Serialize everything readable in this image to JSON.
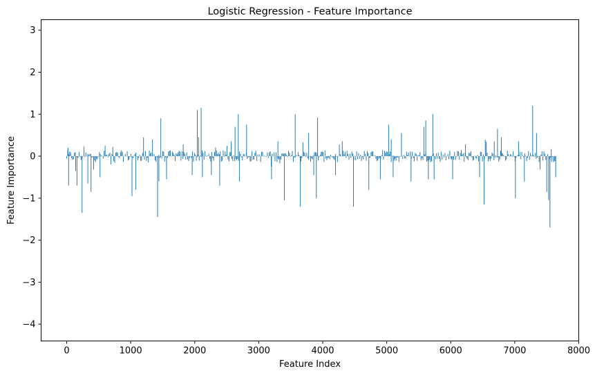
{
  "chart_data": {
    "type": "bar",
    "title": "Logistic Regression - Feature Importance",
    "xlabel": "Feature Index",
    "ylabel": "Feature Importance",
    "xlim": [
      -400,
      8000
    ],
    "ylim": [
      -4.4,
      3.25
    ],
    "xticks": [
      0,
      1000,
      2000,
      3000,
      4000,
      5000,
      6000,
      7000,
      8000
    ],
    "yticks": [
      -4,
      -3,
      -2,
      -1,
      0,
      1,
      2,
      3
    ],
    "ytick_labels": [
      "−4",
      "−3",
      "−2",
      "−1",
      "0",
      "1",
      "2",
      "3"
    ],
    "grid": false,
    "bar_color": "#1f77b4",
    "n_features": 7650,
    "values_sampled_every": 15,
    "notable_values": [
      {
        "x": 20,
        "y": 0.2
      },
      {
        "x": 30,
        "y": -0.7
      },
      {
        "x": 140,
        "y": -0.35
      },
      {
        "x": 160,
        "y": -0.7
      },
      {
        "x": 240,
        "y": -1.35
      },
      {
        "x": 330,
        "y": -0.65
      },
      {
        "x": 380,
        "y": -0.85
      },
      {
        "x": 520,
        "y": -0.5
      },
      {
        "x": 600,
        "y": 0.25
      },
      {
        "x": 720,
        "y": 0.22
      },
      {
        "x": 1020,
        "y": -0.95
      },
      {
        "x": 1080,
        "y": -0.8
      },
      {
        "x": 1200,
        "y": 0.45
      },
      {
        "x": 1340,
        "y": 0.4
      },
      {
        "x": 1420,
        "y": -1.45
      },
      {
        "x": 1440,
        "y": -0.6
      },
      {
        "x": 1470,
        "y": 0.9
      },
      {
        "x": 1560,
        "y": -0.55
      },
      {
        "x": 1820,
        "y": 0.28
      },
      {
        "x": 1960,
        "y": -0.45
      },
      {
        "x": 2040,
        "y": 1.1
      },
      {
        "x": 2060,
        "y": 0.45
      },
      {
        "x": 2100,
        "y": 1.15
      },
      {
        "x": 2120,
        "y": -0.5
      },
      {
        "x": 2260,
        "y": -0.45
      },
      {
        "x": 2390,
        "y": -0.7
      },
      {
        "x": 2570,
        "y": 0.35
      },
      {
        "x": 2630,
        "y": 0.7
      },
      {
        "x": 2680,
        "y": 1.0
      },
      {
        "x": 2700,
        "y": -0.6
      },
      {
        "x": 2810,
        "y": 0.75
      },
      {
        "x": 3200,
        "y": -0.55
      },
      {
        "x": 3300,
        "y": 0.35
      },
      {
        "x": 3400,
        "y": -1.05
      },
      {
        "x": 3570,
        "y": 1.0
      },
      {
        "x": 3650,
        "y": -1.2
      },
      {
        "x": 3780,
        "y": 0.55
      },
      {
        "x": 3860,
        "y": -0.45
      },
      {
        "x": 3900,
        "y": -1.0
      },
      {
        "x": 3920,
        "y": 0.92
      },
      {
        "x": 4200,
        "y": -0.45
      },
      {
        "x": 4480,
        "y": -1.2
      },
      {
        "x": 4720,
        "y": -0.8
      },
      {
        "x": 4900,
        "y": -0.55
      },
      {
        "x": 5030,
        "y": 0.75
      },
      {
        "x": 5070,
        "y": 0.4
      },
      {
        "x": 5100,
        "y": -0.5
      },
      {
        "x": 5230,
        "y": 0.55
      },
      {
        "x": 5380,
        "y": -0.6
      },
      {
        "x": 5580,
        "y": 0.7
      },
      {
        "x": 5610,
        "y": 0.85
      },
      {
        "x": 5650,
        "y": -0.55
      },
      {
        "x": 5720,
        "y": 1.0
      },
      {
        "x": 5740,
        "y": -0.55
      },
      {
        "x": 6030,
        "y": -0.55
      },
      {
        "x": 6230,
        "y": 0.28
      },
      {
        "x": 6450,
        "y": -0.5
      },
      {
        "x": 6520,
        "y": -1.15
      },
      {
        "x": 6680,
        "y": 0.35
      },
      {
        "x": 6730,
        "y": 0.65
      },
      {
        "x": 6790,
        "y": 0.45
      },
      {
        "x": 7010,
        "y": -1.0
      },
      {
        "x": 7060,
        "y": 0.35
      },
      {
        "x": 7150,
        "y": -0.6
      },
      {
        "x": 7280,
        "y": 1.2
      },
      {
        "x": 7340,
        "y": 0.55
      },
      {
        "x": 7500,
        "y": -0.85
      },
      {
        "x": 7530,
        "y": -1.05
      },
      {
        "x": 7550,
        "y": -1.7
      },
      {
        "x": 7570,
        "y": 0.17
      },
      {
        "x": 7640,
        "y": -0.5
      }
    ]
  }
}
